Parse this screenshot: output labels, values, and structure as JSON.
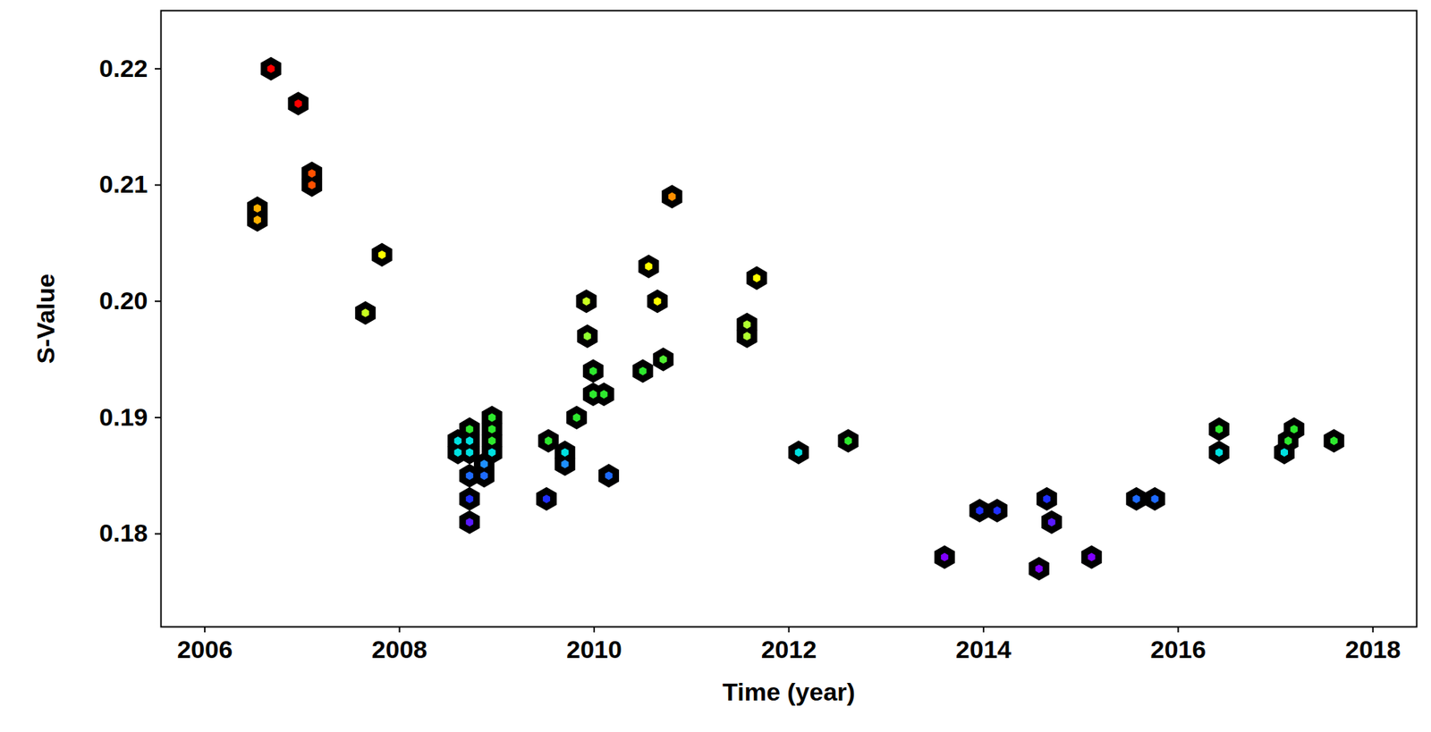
{
  "chart_data": {
    "type": "scatter",
    "x_label": "Time (year)",
    "y_label": "S-Value",
    "marker": "hexagon",
    "grid": false,
    "xlim": [
      2005.55,
      2018.45
    ],
    "ylim": [
      0.172,
      0.225
    ],
    "xticks": [
      2006,
      2008,
      2010,
      2012,
      2014,
      2016,
      2018
    ],
    "yticks": [
      0.18,
      0.19,
      {
        "value": 0.2,
        "label": "0.20"
      },
      0.21,
      0.22
    ],
    "x": [
      2006.54,
      2006.54,
      2006.68,
      2006.96,
      2007.1,
      2007.1,
      2007.65,
      2007.82,
      2008.6,
      2008.6,
      2008.72,
      2008.72,
      2008.72,
      2008.72,
      2008.72,
      2008.72,
      2008.87,
      2008.87,
      2008.95,
      2008.95,
      2008.95,
      2008.95,
      2009.51,
      2009.53,
      2009.7,
      2009.7,
      2009.82,
      2009.92,
      2009.93,
      2009.99,
      2009.99,
      2010.1,
      2010.15,
      2010.5,
      2010.56,
      2010.65,
      2010.71,
      2010.8,
      2011.57,
      2011.57,
      2011.67,
      2012.1,
      2012.61,
      2013.6,
      2013.96,
      2014.14,
      2014.57,
      2014.65,
      2014.7,
      2015.11,
      2015.57,
      2015.76,
      2016.42,
      2016.42,
      2017.09,
      2017.13,
      2017.19,
      2017.6
    ],
    "values": [
      0.208,
      0.207,
      0.22,
      0.217,
      0.211,
      0.21,
      0.199,
      0.204,
      0.188,
      0.187,
      0.189,
      0.188,
      0.187,
      0.185,
      0.183,
      0.181,
      0.186,
      0.185,
      0.19,
      0.189,
      0.188,
      0.187,
      0.183,
      0.188,
      0.187,
      0.186,
      0.19,
      0.2,
      0.197,
      0.194,
      0.192,
      0.192,
      0.185,
      0.194,
      0.203,
      0.2,
      0.195,
      0.209,
      0.198,
      0.197,
      0.202,
      0.187,
      0.188,
      0.178,
      0.182,
      0.182,
      0.177,
      0.183,
      0.181,
      0.178,
      0.183,
      0.183,
      0.189,
      0.187,
      0.187,
      0.188,
      0.189,
      0.188
    ],
    "colors": [
      "#ffb000",
      "#ffb000",
      "#ff0000",
      "#ff0000",
      "#ff5000",
      "#ff5000",
      "#c8ff20",
      "#ffff00",
      "#00e0e0",
      "#00e0e0",
      "#2ee82e",
      "#00e0e0",
      "#00e0e0",
      "#1e6bff",
      "#2030ff",
      "#5a1aff",
      "#1e90ff",
      "#1e6bff",
      "#2ee82e",
      "#2ee82e",
      "#2ee82e",
      "#00e0e0",
      "#2030ff",
      "#2ee82e",
      "#00e0e0",
      "#1e90ff",
      "#2ee82e",
      "#c8ff20",
      "#90ff30",
      "#2ee82e",
      "#2ee82e",
      "#2ee82e",
      "#1e6bff",
      "#2ee82e",
      "#ffff00",
      "#ffff00",
      "#50f030",
      "#ff9000",
      "#b0ff30",
      "#b0ff30",
      "#ffff00",
      "#00e0e0",
      "#2ee82e",
      "#8000ff",
      "#2030ff",
      "#2030ff",
      "#8000ff",
      "#2030ff",
      "#5a1aff",
      "#8000ff",
      "#1e6bff",
      "#1e6bff",
      "#2ee82e",
      "#00e0e0",
      "#00e0e0",
      "#2ee82e",
      "#2ee82e",
      "#2ee82e"
    ]
  }
}
